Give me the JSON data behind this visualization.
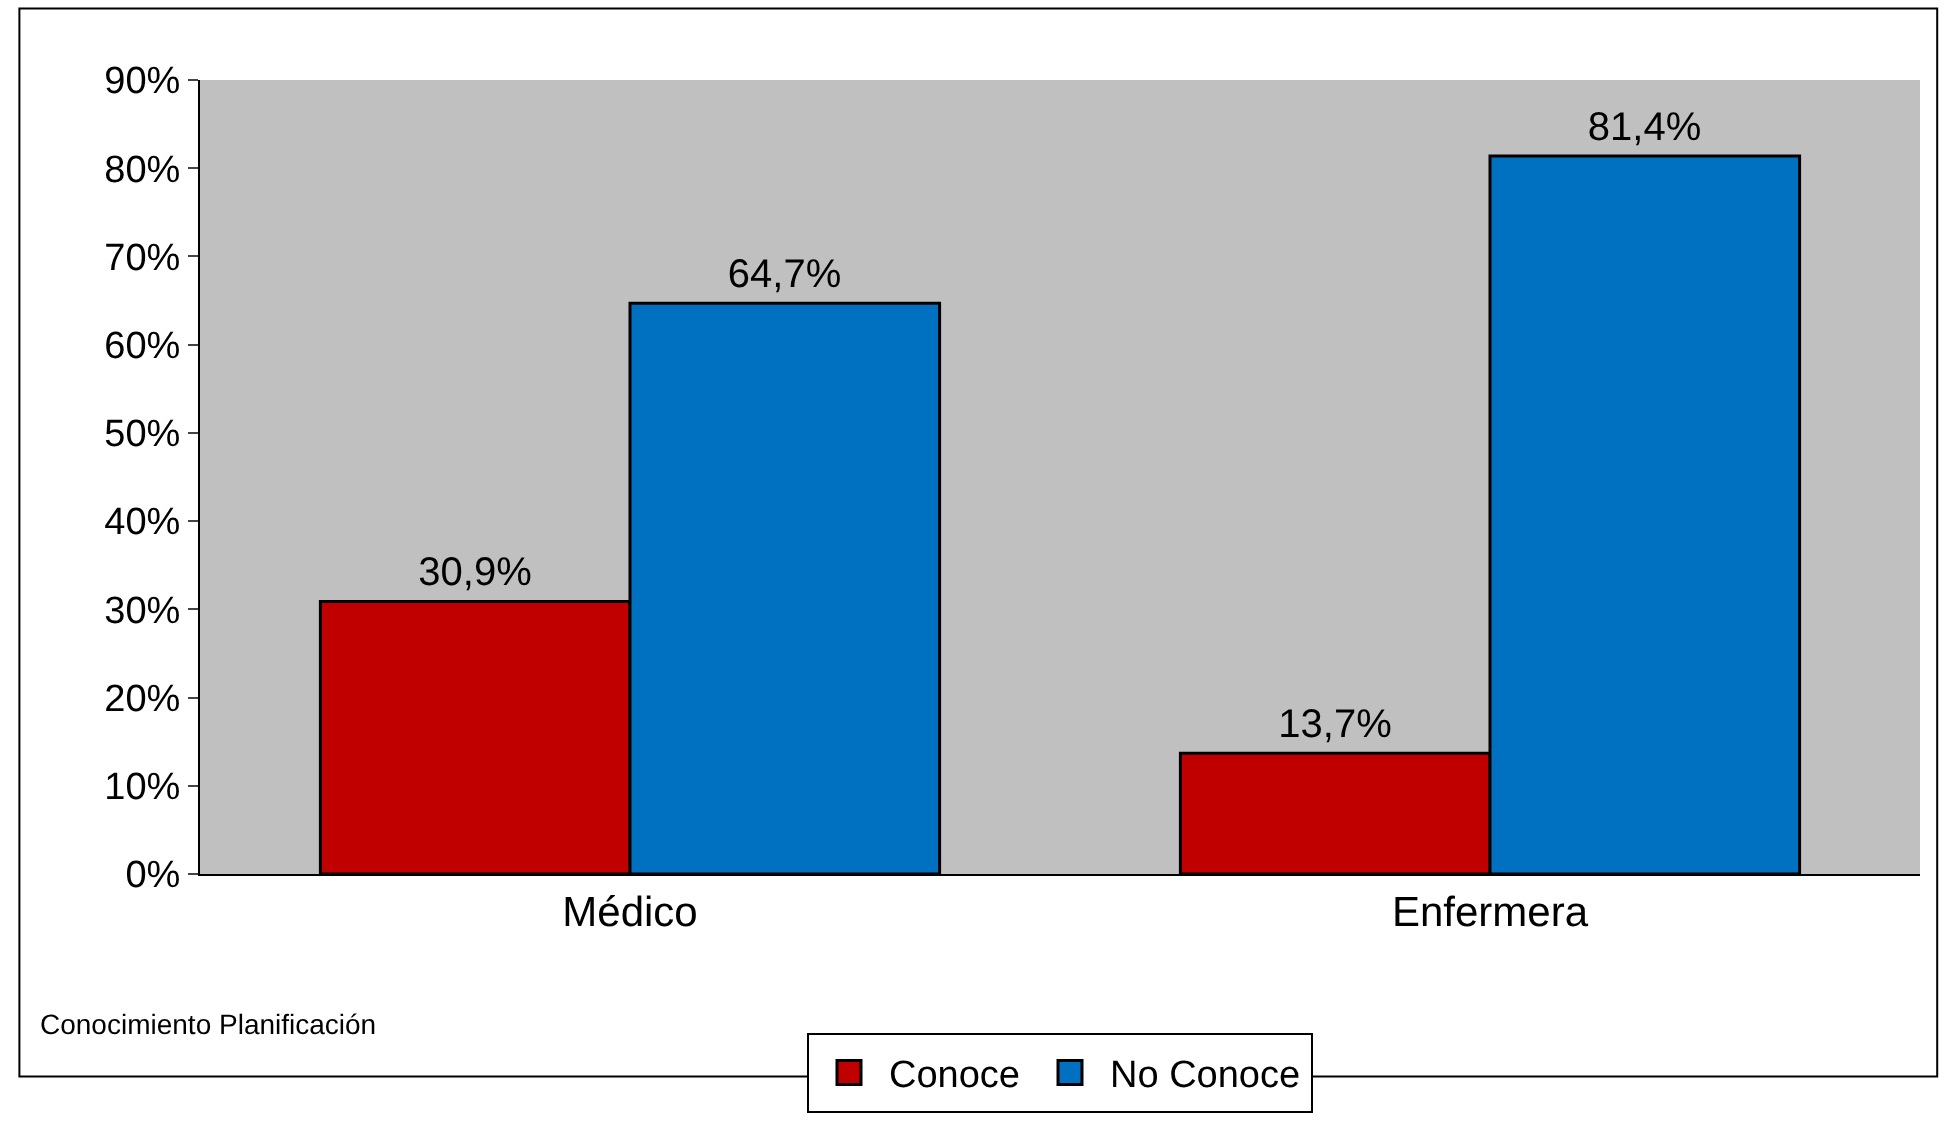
{
  "chart_data": {
    "type": "bar",
    "categories": [
      "Médico",
      "Enfermera"
    ],
    "series": [
      {
        "name": "Conoce",
        "color": "#c00000",
        "values": [
          30.9,
          13.7
        ],
        "value_labels": [
          "30,9%",
          "13,7%"
        ]
      },
      {
        "name": "No Conoce",
        "color": "#0070c0",
        "values": [
          64.7,
          81.4
        ],
        "value_labels": [
          "64,7%",
          "81,4%"
        ]
      }
    ],
    "ylim": [
      0,
      90
    ],
    "yticks": [
      {
        "value": 0,
        "label": "0%"
      },
      {
        "value": 10,
        "label": "10%"
      },
      {
        "value": 20,
        "label": "20%"
      },
      {
        "value": 30,
        "label": "30%"
      },
      {
        "value": 40,
        "label": "40%"
      },
      {
        "value": 50,
        "label": "50%"
      },
      {
        "value": 60,
        "label": "60%"
      },
      {
        "value": 70,
        "label": "70%"
      },
      {
        "value": 80,
        "label": "80%"
      },
      {
        "value": 90,
        "label": "90%"
      }
    ],
    "grid": false,
    "legend": "bottom",
    "annotations": [
      "Conocimiento Planificación"
    ]
  }
}
